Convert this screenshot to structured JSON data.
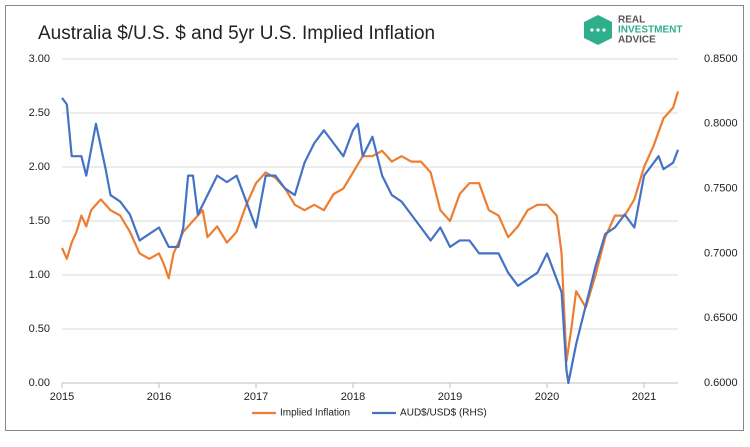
{
  "chart_data": {
    "type": "line",
    "title": "Australia $/U.S. $ and 5yr U.S. Implied Inflation",
    "logo": [
      "REAL",
      "INVESTMENT",
      "ADVICE"
    ],
    "xlim": [
      2015,
      2021.35
    ],
    "xticks": [
      2015,
      2016,
      2017,
      2018,
      2019,
      2020,
      2021
    ],
    "ylim": [
      0,
      3
    ],
    "yticks": [
      {
        "value": 0,
        "label": "0.00"
      },
      {
        "value": 0.5,
        "label": "0.50"
      },
      {
        "value": 1,
        "label": "1.00"
      },
      {
        "value": 1.5,
        "label": "1.50"
      },
      {
        "value": 2,
        "label": "2.00"
      },
      {
        "value": 2.5,
        "label": "2.50"
      },
      {
        "value": 3,
        "label": "3.00"
      }
    ],
    "y2lim": [
      0.6,
      0.85
    ],
    "y2ticks": [
      {
        "value": 0.6,
        "label": "0.6000"
      },
      {
        "value": 0.65,
        "label": "0.6500"
      },
      {
        "value": 0.7,
        "label": "0.7000"
      },
      {
        "value": 0.75,
        "label": "0.7500"
      },
      {
        "value": 0.8,
        "label": "0.8000"
      },
      {
        "value": 0.85,
        "label": "0.8500"
      }
    ],
    "grid": true,
    "legend": "bottom",
    "series": [
      {
        "name": "Implied Inflation",
        "color": "#ED7D31",
        "x": [
          2015.0,
          2015.05,
          2015.1,
          2015.15,
          2015.2,
          2015.25,
          2015.3,
          2015.4,
          2015.5,
          2015.6,
          2015.7,
          2015.8,
          2015.9,
          2016.0,
          2016.05,
          2016.1,
          2016.15,
          2016.25,
          2016.35,
          2016.45,
          2016.5,
          2016.6,
          2016.7,
          2016.8,
          2016.9,
          2017.0,
          2017.1,
          2017.2,
          2017.3,
          2017.4,
          2017.5,
          2017.6,
          2017.7,
          2017.8,
          2017.9,
          2018.0,
          2018.1,
          2018.2,
          2018.3,
          2018.4,
          2018.5,
          2018.6,
          2018.7,
          2018.8,
          2018.9,
          2019.0,
          2019.1,
          2019.2,
          2019.3,
          2019.4,
          2019.5,
          2019.6,
          2019.7,
          2019.8,
          2019.9,
          2020.0,
          2020.1,
          2020.15,
          2020.2,
          2020.25,
          2020.3,
          2020.4,
          2020.5,
          2020.6,
          2020.7,
          2020.8,
          2020.9,
          2021.0,
          2021.1,
          2021.2,
          2021.3,
          2021.35
        ],
        "values": [
          1.25,
          1.15,
          1.3,
          1.4,
          1.55,
          1.45,
          1.6,
          1.7,
          1.6,
          1.55,
          1.4,
          1.2,
          1.15,
          1.2,
          1.1,
          0.97,
          1.2,
          1.4,
          1.5,
          1.6,
          1.35,
          1.45,
          1.3,
          1.4,
          1.65,
          1.85,
          1.95,
          1.9,
          1.8,
          1.65,
          1.6,
          1.65,
          1.6,
          1.75,
          1.8,
          1.95,
          2.1,
          2.1,
          2.15,
          2.05,
          2.1,
          2.05,
          2.05,
          1.95,
          1.6,
          1.5,
          1.75,
          1.85,
          1.85,
          1.6,
          1.55,
          1.35,
          1.45,
          1.6,
          1.65,
          1.65,
          1.55,
          1.2,
          0.2,
          0.5,
          0.85,
          0.7,
          1.0,
          1.35,
          1.55,
          1.55,
          1.7,
          2.0,
          2.2,
          2.45,
          2.55,
          2.7
        ]
      },
      {
        "name": "AUD$/USD$ (RHS)",
        "color": "#4472C4",
        "axis": "y2",
        "x": [
          2015.0,
          2015.05,
          2015.1,
          2015.2,
          2015.25,
          2015.3,
          2015.35,
          2015.45,
          2015.5,
          2015.6,
          2015.7,
          2015.8,
          2015.9,
          2016.0,
          2016.1,
          2016.2,
          2016.25,
          2016.3,
          2016.35,
          2016.4,
          2016.5,
          2016.6,
          2016.7,
          2016.8,
          2016.9,
          2017.0,
          2017.1,
          2017.2,
          2017.3,
          2017.4,
          2017.5,
          2017.6,
          2017.7,
          2017.8,
          2017.9,
          2018.0,
          2018.05,
          2018.1,
          2018.2,
          2018.3,
          2018.4,
          2018.5,
          2018.6,
          2018.7,
          2018.8,
          2018.9,
          2019.0,
          2019.1,
          2019.2,
          2019.3,
          2019.4,
          2019.5,
          2019.6,
          2019.7,
          2019.8,
          2019.9,
          2020.0,
          2020.1,
          2020.15,
          2020.2,
          2020.22,
          2020.3,
          2020.4,
          2020.5,
          2020.6,
          2020.7,
          2020.8,
          2020.9,
          2021.0,
          2021.1,
          2021.15,
          2021.2,
          2021.3,
          2021.35
        ],
        "values": [
          0.82,
          0.815,
          0.775,
          0.775,
          0.76,
          0.78,
          0.8,
          0.765,
          0.745,
          0.74,
          0.73,
          0.71,
          0.715,
          0.72,
          0.705,
          0.705,
          0.72,
          0.76,
          0.76,
          0.73,
          0.745,
          0.76,
          0.755,
          0.76,
          0.74,
          0.72,
          0.76,
          0.76,
          0.75,
          0.745,
          0.77,
          0.785,
          0.795,
          0.785,
          0.775,
          0.795,
          0.8,
          0.775,
          0.79,
          0.76,
          0.745,
          0.74,
          0.73,
          0.72,
          0.71,
          0.72,
          0.705,
          0.71,
          0.71,
          0.7,
          0.7,
          0.7,
          0.685,
          0.675,
          0.68,
          0.685,
          0.7,
          0.68,
          0.67,
          0.61,
          0.6,
          0.63,
          0.66,
          0.69,
          0.715,
          0.72,
          0.73,
          0.72,
          0.76,
          0.77,
          0.775,
          0.765,
          0.77,
          0.78
        ]
      }
    ]
  }
}
